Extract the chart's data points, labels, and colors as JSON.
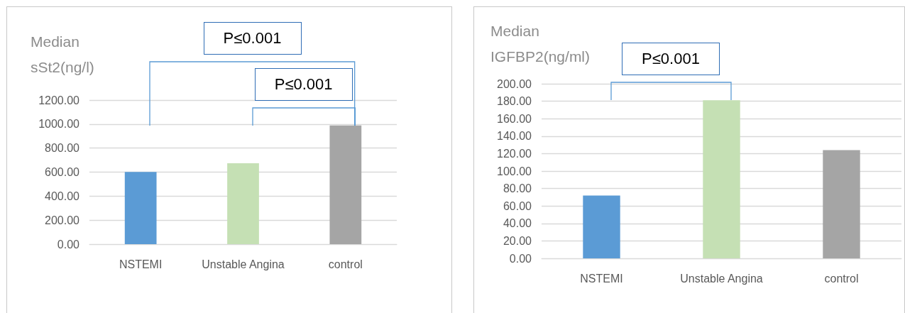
{
  "chart_data": [
    {
      "type": "bar",
      "ylabel": "Median sSt2(ng/l)",
      "categories": [
        "NSTEMI",
        "Unstable Angina",
        "control"
      ],
      "values": [
        602,
        674,
        988
      ],
      "colors": [
        "#5b9bd5",
        "#c5e0b4",
        "#a5a5a5"
      ],
      "ylim": [
        0,
        1200
      ],
      "yticks": [
        {
          "value": 0,
          "label": "0.00"
        },
        {
          "value": 200,
          "label": "200.00"
        },
        {
          "value": 400,
          "label": "400.00"
        },
        {
          "value": 600,
          "label": "600.00"
        },
        {
          "value": 800,
          "label": "800.00"
        },
        {
          "value": 1000,
          "label": "1000.00"
        },
        {
          "value": 1200,
          "label": "1200.00"
        }
      ],
      "grid": "y",
      "annotations": [
        "P≤0.001",
        "P≤0.001"
      ]
    },
    {
      "type": "bar",
      "ylabel": "Median IGFBP2(ng/ml)",
      "categories": [
        "NSTEMI",
        "Unstable Angina",
        "control"
      ],
      "values": [
        72,
        181,
        124
      ],
      "colors": [
        "#5b9bd5",
        "#c5e0b4",
        "#a5a5a5"
      ],
      "ylim": [
        0,
        200
      ],
      "yticks": [
        {
          "value": 0,
          "label": "0.00"
        },
        {
          "value": 20,
          "label": "20.00"
        },
        {
          "value": 40,
          "label": "40.00"
        },
        {
          "value": 60,
          "label": "60.00"
        },
        {
          "value": 80,
          "label": "80.00"
        },
        {
          "value": 100,
          "label": "100.00"
        },
        {
          "value": 120,
          "label": "120.00"
        },
        {
          "value": 140,
          "label": "140.00"
        },
        {
          "value": 160,
          "label": "160.00"
        },
        {
          "value": 180,
          "label": "180.00"
        },
        {
          "value": 200,
          "label": "200.00"
        }
      ],
      "grid": "y",
      "annotations": [
        "P≤0.001"
      ]
    }
  ]
}
